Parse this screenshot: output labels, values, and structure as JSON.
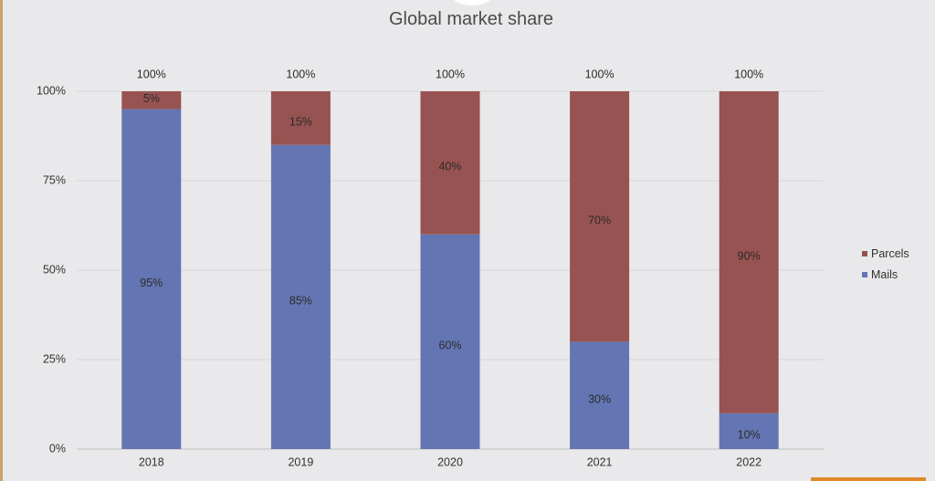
{
  "chart_data": {
    "type": "bar",
    "stacked": true,
    "title": "Global market share",
    "categories": [
      "2018",
      "2019",
      "2020",
      "2021",
      "2022"
    ],
    "series": [
      {
        "name": "Mails",
        "color": "#6475b3",
        "values": [
          95,
          85,
          60,
          30,
          10
        ],
        "labels": [
          "95%",
          "85%",
          "60%",
          "30%",
          "10%"
        ]
      },
      {
        "name": "Parcels",
        "color": "#975351",
        "values": [
          5,
          15,
          40,
          70,
          90
        ],
        "labels": [
          "5%",
          "15%",
          "40%",
          "70%",
          "90%"
        ]
      }
    ],
    "totals": [
      "100%",
      "100%",
      "100%",
      "100%",
      "100%"
    ],
    "yticks": [
      "0%",
      "25%",
      "50%",
      "75%",
      "100%"
    ],
    "ylim": [
      0,
      100
    ],
    "grid": true,
    "legend_position": "right"
  }
}
